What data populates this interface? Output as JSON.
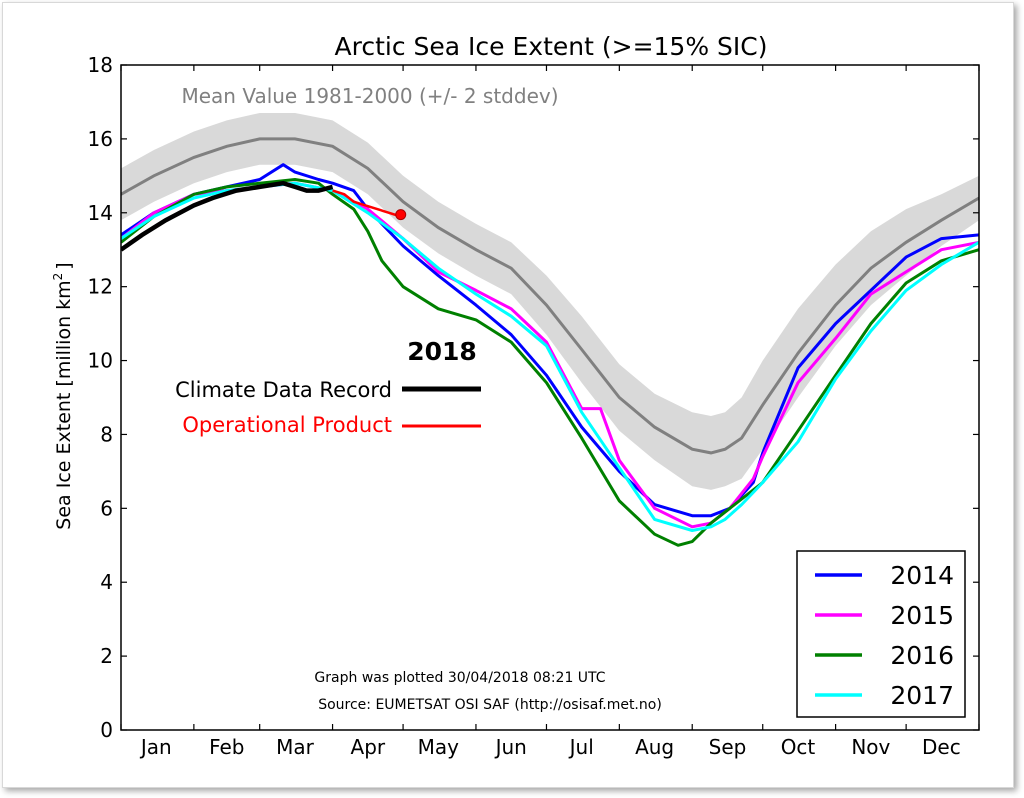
{
  "chart_data": {
    "type": "line",
    "title": "Arctic Sea Ice Extent (>=15% SIC)",
    "xlabel": "",
    "ylabel": "Sea Ice Extent [million km",
    "ylabel_sup": "2",
    "ylabel_end": "]",
    "ylim": [
      0,
      18
    ],
    "xlim": [
      1,
      366
    ],
    "yticks": [
      0,
      2,
      4,
      6,
      8,
      10,
      12,
      14,
      16,
      18
    ],
    "months": [
      {
        "label": "Jan",
        "day": 16
      },
      {
        "label": "Feb",
        "day": 46
      },
      {
        "label": "Mar",
        "day": 75
      },
      {
        "label": "Apr",
        "day": 106
      },
      {
        "label": "May",
        "day": 136
      },
      {
        "label": "Jun",
        "day": 167
      },
      {
        "label": "Jul",
        "day": 197
      },
      {
        "label": "Aug",
        "day": 228
      },
      {
        "label": "Sep",
        "day": 259
      },
      {
        "label": "Oct",
        "day": 289
      },
      {
        "label": "Nov",
        "day": 320
      },
      {
        "label": "Dec",
        "day": 350
      }
    ],
    "month_boundaries": [
      1,
      32,
      60,
      91,
      121,
      152,
      182,
      213,
      244,
      274,
      305,
      335,
      366
    ],
    "grid": false,
    "mean_band": {
      "label": "Mean Value 1981-2000 (+/- 2 stddev)",
      "color": "#808080",
      "band_color": "#d9d9d9",
      "x": [
        1,
        15,
        32,
        46,
        60,
        75,
        91,
        106,
        121,
        136,
        152,
        167,
        182,
        197,
        213,
        228,
        244,
        252,
        258,
        265,
        274,
        289,
        305,
        320,
        335,
        350,
        366
      ],
      "mean": [
        14.5,
        15.0,
        15.5,
        15.8,
        16.0,
        16.0,
        15.8,
        15.2,
        14.3,
        13.6,
        13.0,
        12.5,
        11.5,
        10.3,
        9.0,
        8.2,
        7.6,
        7.5,
        7.6,
        7.9,
        8.8,
        10.2,
        11.5,
        12.5,
        13.2,
        13.8,
        14.4
      ],
      "upper": [
        15.2,
        15.7,
        16.2,
        16.5,
        16.7,
        16.7,
        16.5,
        15.9,
        15.0,
        14.3,
        13.7,
        13.2,
        12.3,
        11.2,
        9.9,
        9.1,
        8.6,
        8.5,
        8.6,
        9.0,
        10.0,
        11.4,
        12.6,
        13.5,
        14.1,
        14.5,
        15.0
      ],
      "lower": [
        13.8,
        14.3,
        14.8,
        15.1,
        15.3,
        15.3,
        15.1,
        14.5,
        13.6,
        12.9,
        12.3,
        11.8,
        10.7,
        9.4,
        8.1,
        7.3,
        6.6,
        6.5,
        6.6,
        6.8,
        7.6,
        9.0,
        10.4,
        11.5,
        12.3,
        13.1,
        13.8
      ]
    },
    "series": [
      {
        "name": "2014",
        "color": "#0000ff",
        "x": [
          1,
          15,
          32,
          46,
          60,
          70,
          75,
          85,
          91,
          100,
          106,
          121,
          136,
          152,
          167,
          182,
          197,
          213,
          228,
          244,
          252,
          260,
          270,
          274,
          289,
          305,
          320,
          335,
          350,
          366
        ],
        "y": [
          13.4,
          14.0,
          14.5,
          14.7,
          14.9,
          15.3,
          15.1,
          14.9,
          14.8,
          14.6,
          14.1,
          13.1,
          12.3,
          11.5,
          10.7,
          9.6,
          8.2,
          7.0,
          6.1,
          5.8,
          5.8,
          6.0,
          6.7,
          7.5,
          9.8,
          11.0,
          11.9,
          12.8,
          13.3,
          13.4
        ]
      },
      {
        "name": "2015",
        "color": "#ff00ff",
        "x": [
          1,
          15,
          32,
          46,
          60,
          75,
          91,
          106,
          121,
          136,
          152,
          167,
          182,
          197,
          205,
          213,
          228,
          244,
          252,
          260,
          270,
          274,
          289,
          305,
          320,
          335,
          350,
          366
        ],
        "y": [
          13.3,
          14.0,
          14.5,
          14.6,
          14.7,
          14.8,
          14.6,
          14.1,
          13.3,
          12.4,
          11.9,
          11.4,
          10.5,
          8.7,
          8.7,
          7.3,
          6.0,
          5.5,
          5.6,
          6.0,
          6.8,
          7.4,
          9.4,
          10.6,
          11.8,
          12.4,
          13.0,
          13.2
        ]
      },
      {
        "name": "2016",
        "color": "#008000",
        "x": [
          1,
          15,
          32,
          46,
          60,
          75,
          85,
          91,
          100,
          106,
          112,
          121,
          136,
          152,
          167,
          182,
          197,
          213,
          228,
          238,
          244,
          252,
          260,
          274,
          289,
          305,
          320,
          335,
          350,
          366
        ],
        "y": [
          13.2,
          13.9,
          14.5,
          14.7,
          14.8,
          14.9,
          14.8,
          14.5,
          14.1,
          13.5,
          12.7,
          12.0,
          11.4,
          11.1,
          10.5,
          9.4,
          7.9,
          6.2,
          5.3,
          5.0,
          5.1,
          5.6,
          6.0,
          6.7,
          8.1,
          9.6,
          11.0,
          12.1,
          12.7,
          13.0
        ]
      },
      {
        "name": "2017",
        "color": "#00ffff",
        "x": [
          1,
          15,
          32,
          46,
          60,
          75,
          91,
          106,
          121,
          136,
          152,
          167,
          182,
          197,
          213,
          228,
          244,
          252,
          258,
          265,
          274,
          289,
          305,
          320,
          335,
          350,
          366
        ],
        "y": [
          13.3,
          13.9,
          14.4,
          14.6,
          14.7,
          14.8,
          14.6,
          14.0,
          13.3,
          12.5,
          11.8,
          11.2,
          10.4,
          8.6,
          7.1,
          5.7,
          5.4,
          5.5,
          5.7,
          6.1,
          6.7,
          7.8,
          9.5,
          10.8,
          11.9,
          12.6,
          13.2
        ]
      }
    ],
    "y2018": {
      "title": "2018",
      "cdr": {
        "name": "Climate Data Record",
        "color": "#000000",
        "x": [
          1,
          10,
          20,
          32,
          40,
          50,
          60,
          70,
          75,
          80,
          85,
          91
        ],
        "y": [
          13.0,
          13.4,
          13.8,
          14.2,
          14.4,
          14.6,
          14.7,
          14.8,
          14.7,
          14.6,
          14.6,
          14.7
        ]
      },
      "op": {
        "name": "Operational Product",
        "color": "#ff0000",
        "x": [
          91,
          96,
          100,
          105,
          110,
          115,
          120
        ],
        "y": [
          14.6,
          14.5,
          14.3,
          14.2,
          14.1,
          14.0,
          13.9
        ]
      },
      "endpoint": {
        "x": 120,
        "y": 13.95
      }
    },
    "legend_placement": "lower-right",
    "notes": {
      "plotted": "Graph was plotted 30/04/2018 08:21 UTC",
      "source": "Source: EUMETSAT OSI SAF (http://osisaf.met.no)"
    }
  }
}
